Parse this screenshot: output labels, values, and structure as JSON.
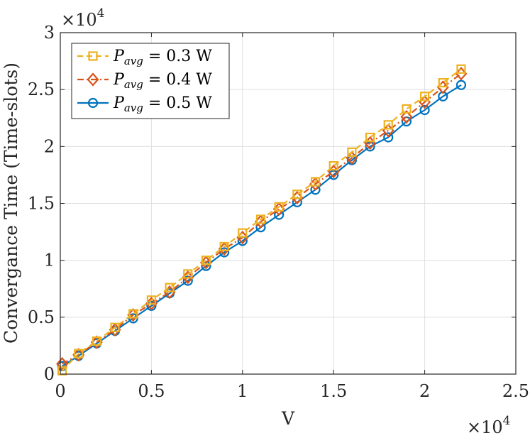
{
  "chart_data": {
    "type": "line",
    "xlabel": "V",
    "ylabel": "Convergance Time (Time-slots)",
    "x_exponent_label": "×10",
    "x_exponent_power": "4",
    "y_exponent_label": "×10",
    "y_exponent_power": "4",
    "xlim": [
      0,
      25000
    ],
    "ylim": [
      0,
      30000
    ],
    "x_ticks": [
      0,
      5000,
      10000,
      15000,
      20000,
      25000
    ],
    "x_tick_labels": [
      "0",
      "0.5",
      "1",
      "1.5",
      "2",
      "2.5"
    ],
    "y_ticks": [
      0,
      5000,
      10000,
      15000,
      20000,
      25000,
      30000
    ],
    "y_tick_labels": [
      "0",
      "0.5",
      "1",
      "1.5",
      "2",
      "2.5",
      "3"
    ],
    "grid": true,
    "legend_position": "top-left",
    "x": [
      100,
      1000,
      2000,
      3000,
      4000,
      5000,
      6000,
      7000,
      8000,
      9000,
      10000,
      11000,
      12000,
      13000,
      14000,
      15000,
      16000,
      17000,
      18000,
      19000,
      20000,
      21000,
      22000
    ],
    "series": [
      {
        "legend_p": "P",
        "legend_sub": "avg",
        "legend_value": " = 0.3 W",
        "color": "#EDB120",
        "marker": "square",
        "dash": "dashed",
        "values": [
          300,
          1800,
          2900,
          4100,
          5300,
          6500,
          7600,
          8800,
          10000,
          11200,
          12400,
          13600,
          14700,
          15800,
          16900,
          18300,
          19500,
          20800,
          21900,
          23300,
          24400,
          25600,
          26800
        ]
      },
      {
        "legend_p": "P",
        "legend_sub": "avg",
        "legend_value": " = 0.4 W",
        "color": "#D95319",
        "marker": "diamond",
        "dash": "dashdot",
        "values": [
          900,
          1700,
          2800,
          3900,
          5200,
          6200,
          7200,
          8500,
          9800,
          11000,
          12000,
          13400,
          14500,
          15500,
          16700,
          17800,
          19000,
          20300,
          21400,
          22600,
          23900,
          25200,
          26400
        ]
      },
      {
        "legend_p": "P",
        "legend_sub": "avg",
        "legend_value": " = 0.5 W",
        "color": "#0072BD",
        "marker": "circle",
        "dash": "solid",
        "values": [
          700,
          1600,
          2700,
          3800,
          4900,
          6000,
          7100,
          8200,
          9500,
          10700,
          11700,
          12900,
          14000,
          15100,
          16200,
          17500,
          18800,
          20000,
          20800,
          22200,
          23200,
          24400,
          25400
        ]
      }
    ]
  }
}
